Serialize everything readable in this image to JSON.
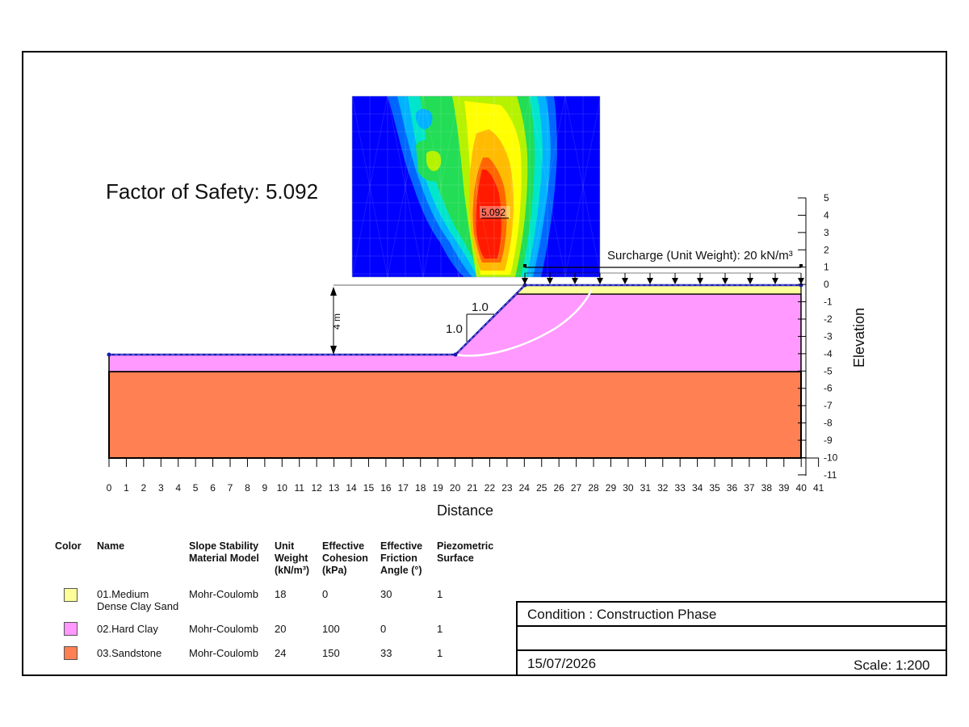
{
  "fos_title": "Factor of Safety: 5.092",
  "fos_min_label": "5.092",
  "surcharge_label": "Surcharge (Unit Weight): 20 kN/m³",
  "height_dim_label": "4 m",
  "slope_ratio": {
    "horizontal": "1.0",
    "vertical": "1.0"
  },
  "x_axis": {
    "label": "Distance",
    "min": 0,
    "max": 41,
    "ticks": [
      "0",
      "1",
      "2",
      "3",
      "4",
      "5",
      "6",
      "7",
      "8",
      "9",
      "10",
      "11",
      "12",
      "13",
      "14",
      "15",
      "16",
      "17",
      "18",
      "19",
      "20",
      "21",
      "22",
      "23",
      "24",
      "25",
      "26",
      "27",
      "28",
      "29",
      "30",
      "31",
      "32",
      "33",
      "34",
      "35",
      "36",
      "37",
      "38",
      "39",
      "40",
      "41"
    ]
  },
  "y_axis": {
    "label": "Elevation",
    "min": -11,
    "max": 5,
    "ticks": [
      "5",
      "4",
      "3",
      "2",
      "1",
      "0",
      "-1",
      "-2",
      "-3",
      "-4",
      "-5",
      "-6",
      "-7",
      "-8",
      "-9",
      "-10",
      "-11"
    ]
  },
  "geometry": {
    "ground_surface": [
      [
        0,
        -4
      ],
      [
        20,
        -4
      ],
      [
        24,
        0
      ],
      [
        40,
        0
      ]
    ],
    "hard_clay_bottom": -5,
    "clay_sand_bottom": -0.5,
    "model_bottom": -10,
    "slip_surface": [
      [
        20,
        -4
      ],
      [
        22,
        -3.8
      ],
      [
        24.5,
        -3
      ],
      [
        26.5,
        -1.6
      ],
      [
        27.7,
        -0.3
      ]
    ],
    "surcharge_extent": [
      24,
      40
    ]
  },
  "contour_colors": [
    "#0000ff",
    "#0066ff",
    "#00b2ff",
    "#00e5cc",
    "#22dd55",
    "#b5f200",
    "#ffff00",
    "#ffbb00",
    "#ff6600",
    "#ff1a00"
  ],
  "legend": {
    "headers": [
      "Color",
      "Name",
      "Slope Stability\nMaterial Model",
      "Unit\nWeight\n(kN/m³)",
      "Effective\nCohesion\n(kPa)",
      "Effective\nFriction\nAngle (°)",
      "Piezometric\nSurface"
    ],
    "rows": [
      {
        "name": "01.Medium\nDense Clay Sand",
        "model": "Mohr-Coulomb",
        "unit_weight": "18",
        "cohesion": "0",
        "friction": "30",
        "piezo": "1",
        "color": "#ffff99"
      },
      {
        "name": "02.Hard Clay",
        "model": "Mohr-Coulomb",
        "unit_weight": "20",
        "cohesion": "100",
        "friction": "0",
        "piezo": "1",
        "color": "#ff99ff"
      },
      {
        "name": "03.Sandstone",
        "model": "Mohr-Coulomb",
        "unit_weight": "24",
        "cohesion": "150",
        "friction": "33",
        "piezo": "1",
        "color": "#ff8052"
      }
    ]
  },
  "title_block": {
    "condition": "Condition : Construction Phase",
    "row2": "",
    "date": "15/07/2026",
    "scale": "Scale: 1:200"
  }
}
